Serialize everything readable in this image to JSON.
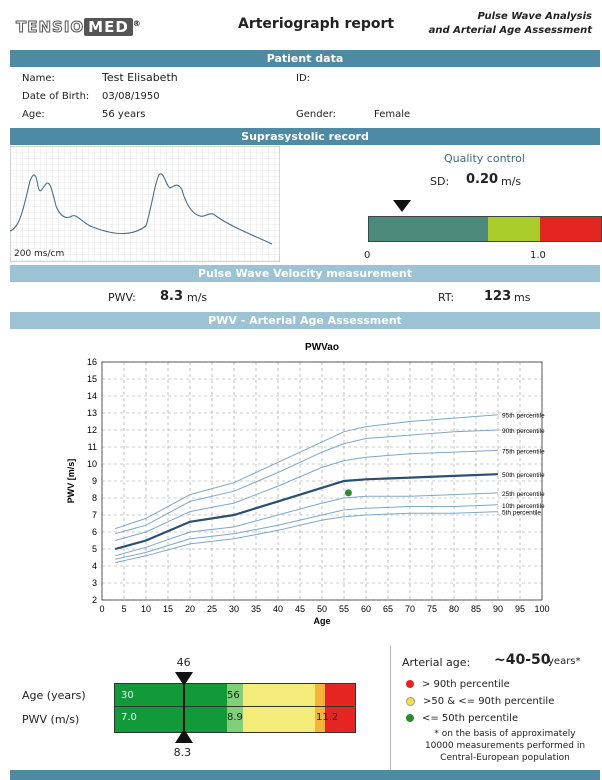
{
  "header": {
    "logo_a": "TENSIO",
    "logo_b": "MED",
    "logo_reg": "®",
    "title": "Arteriograph report",
    "subtitle_1": "Pulse Wave Analysis",
    "subtitle_2": "and Arterial Age Assessment"
  },
  "sections": {
    "patient": "Patient data",
    "supra": "Suprasystolic record",
    "pwv_meas": "Pulse Wave Velocity measurement",
    "pwv_age": "PWV - Arterial Age Assessment"
  },
  "patient": {
    "name_label": "Name:",
    "name": "Test Elisabeth",
    "id_label": "ID:",
    "dob_label": "Date of Birth:",
    "dob": "03/08/1950",
    "age_label": "Age:",
    "age": "56 years",
    "gender_label": "Gender:",
    "gender": "Female"
  },
  "record": {
    "scale": "200 ms/cm",
    "qc_title": "Quality control",
    "sd_label": "SD:",
    "sd_value": "0.20",
    "sd_unit": "m/s",
    "qc_tick_0": "0",
    "qc_tick_1": "1.0",
    "qc_value": 0.2,
    "colors": {
      "good": "#4e8a7a",
      "mid": "#a9cc2a",
      "bad": "#e52521"
    }
  },
  "pwv": {
    "pwv_label": "PWV:",
    "pwv_value": "8.3",
    "pwv_unit": "m/s",
    "rt_label": "RT:",
    "rt_value": "123",
    "rt_unit": "ms"
  },
  "chart_data": {
    "type": "line",
    "title": "PWVao",
    "xlabel": "Age",
    "ylabel": "PWV [m/s]",
    "xlim": [
      0,
      100
    ],
    "ylim": [
      2,
      16
    ],
    "x_ticks": [
      0,
      5,
      10,
      15,
      20,
      25,
      30,
      35,
      40,
      45,
      50,
      55,
      60,
      65,
      70,
      75,
      80,
      85,
      90,
      95,
      100
    ],
    "y_ticks": [
      2,
      3,
      4,
      5,
      6,
      7,
      8,
      9,
      10,
      11,
      12,
      13,
      14,
      15,
      16
    ],
    "grid": true,
    "x": [
      3,
      10,
      20,
      30,
      40,
      50,
      55,
      60,
      70,
      80,
      90
    ],
    "series": [
      {
        "name": "95th percentile",
        "values": [
          6.2,
          6.8,
          8.2,
          8.9,
          10.1,
          11.3,
          11.9,
          12.2,
          12.5,
          12.7,
          12.9
        ]
      },
      {
        "name": "90th percentile",
        "values": [
          5.9,
          6.4,
          7.8,
          8.4,
          9.5,
          10.7,
          11.2,
          11.5,
          11.7,
          11.9,
          12.0
        ]
      },
      {
        "name": "75th percentile",
        "values": [
          5.5,
          6.0,
          7.2,
          7.7,
          8.7,
          9.8,
          10.2,
          10.4,
          10.6,
          10.7,
          10.8
        ]
      },
      {
        "name": "50th percentile",
        "values": [
          5.0,
          5.5,
          6.6,
          7.0,
          7.8,
          8.6,
          9.0,
          9.1,
          9.2,
          9.3,
          9.4
        ]
      },
      {
        "name": "25th percentile",
        "values": [
          4.6,
          5.1,
          6.0,
          6.3,
          7.0,
          7.7,
          8.0,
          8.1,
          8.1,
          8.2,
          8.3
        ]
      },
      {
        "name": "10th percentile",
        "values": [
          4.4,
          4.8,
          5.6,
          5.9,
          6.4,
          7.0,
          7.3,
          7.4,
          7.5,
          7.5,
          7.6
        ]
      },
      {
        "name": "5th percentile",
        "values": [
          4.2,
          4.6,
          5.3,
          5.6,
          6.1,
          6.7,
          6.9,
          7.0,
          7.1,
          7.1,
          7.2
        ]
      }
    ],
    "patient_point": {
      "x": 56,
      "y": 8.3,
      "color": "#2e8b2e"
    }
  },
  "agebar": {
    "age_label": "Age (years)",
    "pwv_label": "PWV (m/s)",
    "top_value": "46",
    "bottom_value": "8.3",
    "age_low": "30",
    "pwv_low": "7.0",
    "age_mid": "56",
    "pwv_mid": "8.9",
    "pwv_high": "11.2",
    "marker_fraction": 0.29
  },
  "legend": {
    "arterial_age_label": "Arterial age:",
    "arterial_age_value": "~40-50",
    "arterial_age_unit": "years*",
    "items": [
      {
        "color": "#e52521",
        "text": "> 90th percentile"
      },
      {
        "color": "#f2e33a",
        "text": ">50 & <= 90th percentile"
      },
      {
        "color": "#2e8b2e",
        "text": "<= 50th percentile"
      }
    ],
    "footnote": "* on the basis of approximately 10000 measurements performed in Central-European population"
  }
}
